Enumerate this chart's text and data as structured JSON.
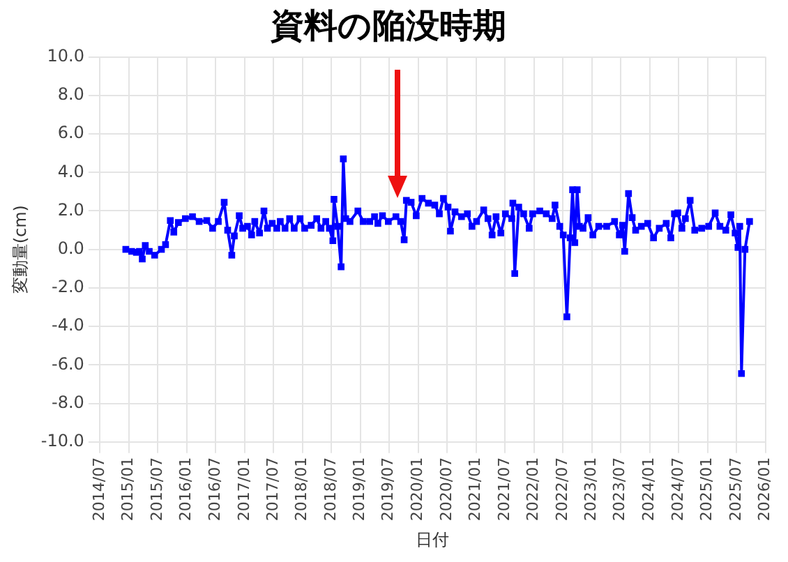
{
  "chart_data": {
    "type": "line",
    "title": "資料の陥没時期",
    "xlabel": "日付",
    "ylabel": "変動量(cm)",
    "color": "#0000ff",
    "marker": "square",
    "grid": true,
    "legend": false,
    "x": [
      "2014-12-13",
      "2015-01-19",
      "2015-02-18",
      "2015-03-09",
      "2015-03-27",
      "2015-04-15",
      "2015-05-10",
      "2015-06-13",
      "2015-07-26",
      "2015-08-21",
      "2015-09-20",
      "2015-10-12",
      "2015-11-10",
      "2015-12-24",
      "2016-02-07",
      "2016-03-20",
      "2016-05-07",
      "2016-06-13",
      "2016-07-19",
      "2016-08-25",
      "2016-09-16",
      "2016-10-12",
      "2016-10-28",
      "2016-11-28",
      "2016-12-20",
      "2017-01-19",
      "2017-02-14",
      "2017-03-06",
      "2017-04-05",
      "2017-05-03",
      "2017-05-25",
      "2017-06-24",
      "2017-07-23",
      "2017-08-14",
      "2017-09-13",
      "2017-10-12",
      "2017-11-10",
      "2017-12-17",
      "2018-01-15",
      "2018-02-25",
      "2018-04-01",
      "2018-04-28",
      "2018-05-28",
      "2018-06-20",
      "2018-07-12",
      "2018-07-19",
      "2018-08-11",
      "2018-09-02",
      "2018-09-16",
      "2018-10-01",
      "2018-10-28",
      "2018-12-17",
      "2019-01-19",
      "2019-03-02",
      "2019-04-01",
      "2019-04-22",
      "2019-05-21",
      "2019-06-27",
      "2019-08-14",
      "2019-09-13",
      "2019-10-05",
      "2019-10-19",
      "2019-11-18",
      "2019-12-20",
      "2020-01-26",
      "2020-03-06",
      "2020-04-15",
      "2020-05-14",
      "2020-06-09",
      "2020-07-08",
      "2020-07-23",
      "2020-08-21",
      "2020-10-01",
      "2020-11-07",
      "2020-12-06",
      "2021-01-04",
      "2021-02-18",
      "2021-03-17",
      "2021-04-12",
      "2021-05-07",
      "2021-06-06",
      "2021-07-05",
      "2021-08-14",
      "2021-08-21",
      "2021-09-02",
      "2021-09-27",
      "2021-10-28",
      "2021-12-02",
      "2021-12-24",
      "2022-02-07",
      "2022-03-20",
      "2022-04-26",
      "2022-05-14",
      "2022-06-13",
      "2022-07-05",
      "2022-07-28",
      "2022-08-18",
      "2022-09-02",
      "2022-09-16",
      "2022-10-01",
      "2022-10-15",
      "2022-11-07",
      "2022-12-09",
      "2023-01-08",
      "2023-02-14",
      "2023-04-05",
      "2023-05-25",
      "2023-06-24",
      "2023-07-15",
      "2023-07-28",
      "2023-08-21",
      "2023-09-13",
      "2023-10-05",
      "2023-11-10",
      "2023-12-20",
      "2024-01-26",
      "2024-03-02",
      "2024-04-15",
      "2024-05-14",
      "2024-06-06",
      "2024-06-27",
      "2024-07-23",
      "2024-08-14",
      "2024-09-13",
      "2024-10-12",
      "2024-11-25",
      "2025-01-08",
      "2025-02-18",
      "2025-03-20",
      "2025-04-26",
      "2025-05-28",
      "2025-06-24",
      "2025-07-12",
      "2025-07-23",
      "2025-08-03",
      "2025-08-25",
      "2025-09-23"
    ],
    "values": [
      0.0,
      -0.1,
      -0.15,
      -0.1,
      -0.5,
      0.2,
      -0.1,
      -0.3,
      0.0,
      0.25,
      1.5,
      0.9,
      1.4,
      1.6,
      1.7,
      1.45,
      1.5,
      1.1,
      1.45,
      2.45,
      1.0,
      -0.3,
      0.7,
      1.75,
      1.1,
      1.2,
      0.75,
      1.45,
      0.85,
      2.0,
      1.1,
      1.35,
      1.1,
      1.45,
      1.1,
      1.6,
      1.1,
      1.6,
      1.1,
      1.25,
      1.6,
      1.1,
      1.45,
      1.1,
      0.45,
      2.6,
      1.2,
      -0.9,
      4.7,
      1.6,
      1.45,
      2.0,
      1.45,
      1.45,
      1.7,
      1.35,
      1.75,
      1.45,
      1.7,
      1.45,
      0.5,
      2.55,
      2.45,
      1.75,
      2.65,
      2.4,
      2.3,
      1.85,
      2.65,
      2.2,
      0.95,
      1.95,
      1.7,
      1.85,
      1.2,
      1.45,
      2.05,
      1.6,
      0.75,
      1.7,
      0.85,
      1.85,
      1.6,
      2.4,
      -1.25,
      2.2,
      1.85,
      1.1,
      1.85,
      2.0,
      1.85,
      1.6,
      2.3,
      1.2,
      0.75,
      -3.5,
      0.6,
      3.1,
      0.35,
      3.1,
      1.2,
      1.1,
      1.65,
      0.75,
      1.2,
      1.2,
      1.45,
      0.75,
      1.25,
      -0.1,
      2.9,
      1.65,
      1.0,
      1.2,
      1.35,
      0.6,
      1.1,
      1.35,
      0.6,
      1.85,
      1.9,
      1.1,
      1.6,
      2.55,
      1.0,
      1.1,
      1.2,
      1.9,
      1.2,
      1.0,
      1.8,
      0.85,
      0.1,
      1.2,
      -6.45,
      0.0,
      1.45
    ],
    "xlim": [
      "2014-07",
      "2026-01"
    ],
    "xticks": [
      {
        "value": "2014-07",
        "label": "2014/07"
      },
      {
        "value": "2015-01",
        "label": "2015/01"
      },
      {
        "value": "2015-07",
        "label": "2015/07"
      },
      {
        "value": "2016-01",
        "label": "2016/01"
      },
      {
        "value": "2016-07",
        "label": "2016/07"
      },
      {
        "value": "2017-01",
        "label": "2017/01"
      },
      {
        "value": "2017-07",
        "label": "2017/07"
      },
      {
        "value": "2018-01",
        "label": "2018/01"
      },
      {
        "value": "2018-07",
        "label": "2018/07"
      },
      {
        "value": "2019-01",
        "label": "2019/01"
      },
      {
        "value": "2019-07",
        "label": "2019/07"
      },
      {
        "value": "2020-01",
        "label": "2020/01"
      },
      {
        "value": "2020-07",
        "label": "2020/07"
      },
      {
        "value": "2021-01",
        "label": "2021/01"
      },
      {
        "value": "2021-07",
        "label": "2021/07"
      },
      {
        "value": "2022-01",
        "label": "2022/01"
      },
      {
        "value": "2022-07",
        "label": "2022/07"
      },
      {
        "value": "2023-01",
        "label": "2023/01"
      },
      {
        "value": "2023-07",
        "label": "2023/07"
      },
      {
        "value": "2024-01",
        "label": "2024/01"
      },
      {
        "value": "2024-07",
        "label": "2024/07"
      },
      {
        "value": "2025-01",
        "label": "2025/01"
      },
      {
        "value": "2025-07",
        "label": "2025/07"
      },
      {
        "value": "2026-01",
        "label": "2026/01"
      }
    ],
    "ylim": [
      -10,
      10
    ],
    "yticks": [
      {
        "value": -10,
        "label": "-10.0"
      },
      {
        "value": -8,
        "label": "-8.0"
      },
      {
        "value": -6,
        "label": "-6.0"
      },
      {
        "value": -4,
        "label": "-4.0"
      },
      {
        "value": -2,
        "label": "-2.0"
      },
      {
        "value": 0,
        "label": "0.0"
      },
      {
        "value": 2,
        "label": "2.0"
      },
      {
        "value": 4,
        "label": "4.0"
      },
      {
        "value": 6,
        "label": "6.0"
      },
      {
        "value": 8,
        "label": "8.0"
      },
      {
        "value": 10,
        "label": "10.0"
      }
    ]
  }
}
